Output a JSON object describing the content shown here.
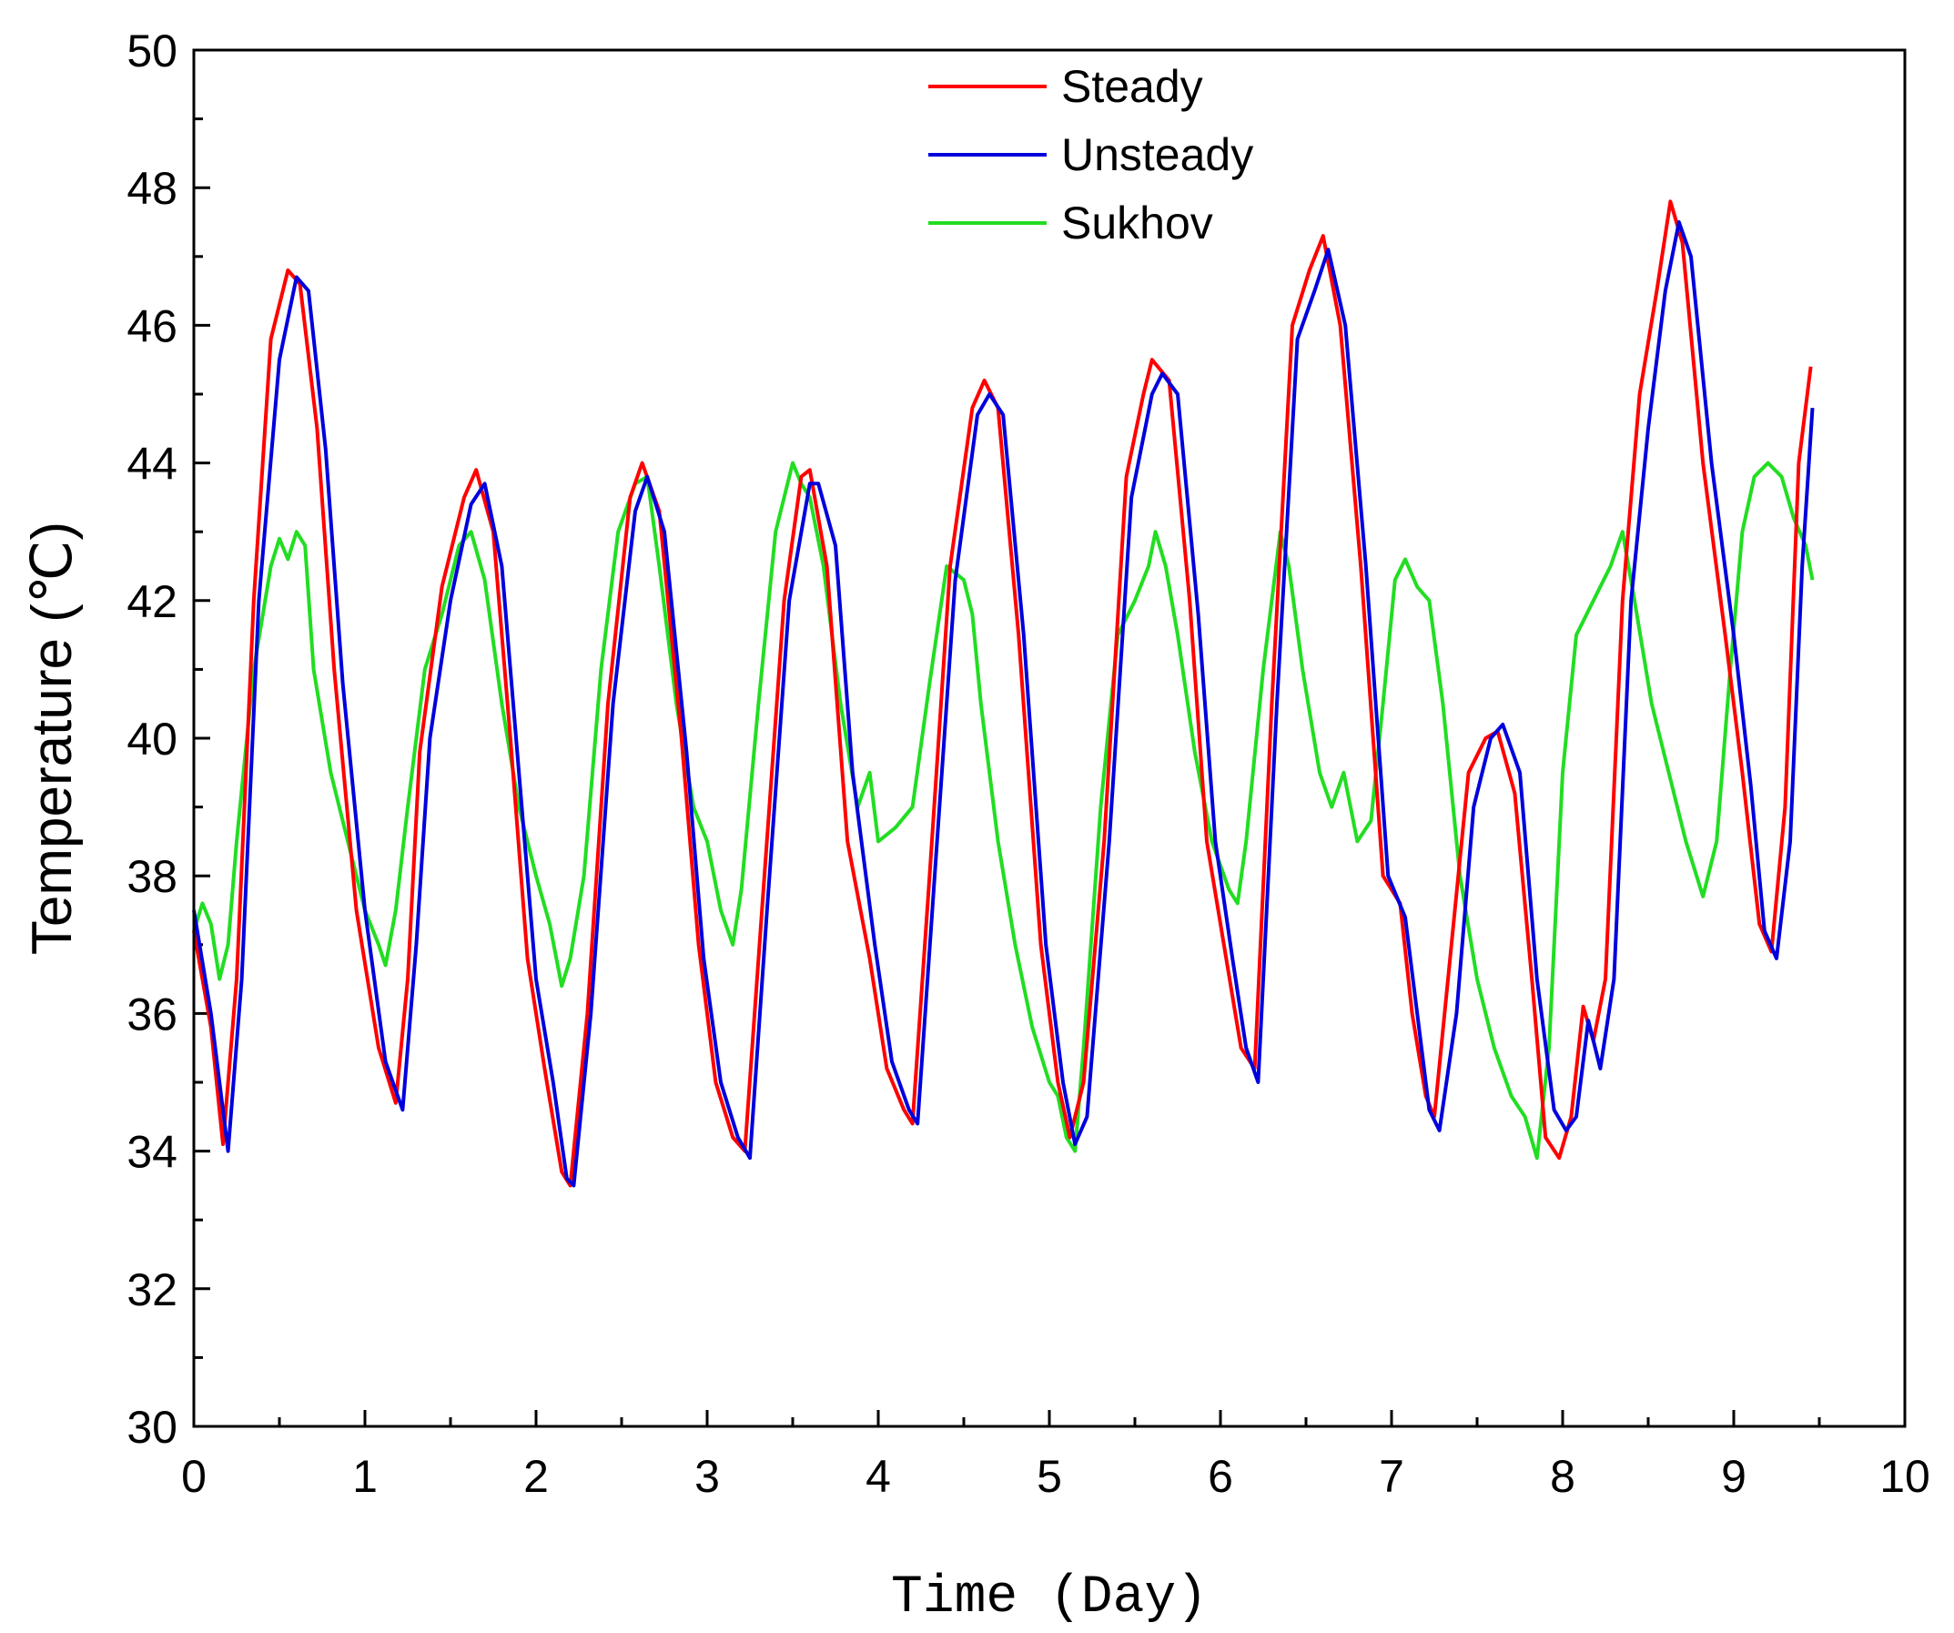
{
  "chart_data": {
    "type": "line",
    "xlabel": "Time (Day)",
    "ylabel": "Temperature (℃)",
    "xlim": [
      0,
      10
    ],
    "ylim": [
      30,
      50
    ],
    "xticks": [
      0,
      1,
      2,
      3,
      4,
      5,
      6,
      7,
      8,
      9,
      10
    ],
    "yticks": [
      30,
      32,
      34,
      36,
      38,
      40,
      42,
      44,
      46,
      48,
      50
    ],
    "legend_position": "top-center",
    "series": [
      {
        "name": "Steady",
        "color": "#ff0000",
        "points": [
          [
            0,
            37.2
          ],
          [
            0.1,
            35.8
          ],
          [
            0.17,
            34.1
          ],
          [
            0.25,
            36.5
          ],
          [
            0.35,
            42.0
          ],
          [
            0.45,
            45.8
          ],
          [
            0.55,
            46.8
          ],
          [
            0.62,
            46.6
          ],
          [
            0.72,
            44.5
          ],
          [
            0.82,
            41.0
          ],
          [
            0.95,
            37.5
          ],
          [
            1.08,
            35.5
          ],
          [
            1.18,
            34.7
          ],
          [
            1.25,
            36.5
          ],
          [
            1.32,
            39.8
          ],
          [
            1.45,
            42.2
          ],
          [
            1.58,
            43.5
          ],
          [
            1.65,
            43.9
          ],
          [
            1.75,
            43.0
          ],
          [
            1.85,
            40.0
          ],
          [
            1.95,
            36.8
          ],
          [
            2.05,
            35.2
          ],
          [
            2.15,
            33.7
          ],
          [
            2.2,
            33.5
          ],
          [
            2.3,
            36.0
          ],
          [
            2.42,
            40.5
          ],
          [
            2.55,
            43.5
          ],
          [
            2.62,
            44.0
          ],
          [
            2.72,
            43.3
          ],
          [
            2.85,
            40.0
          ],
          [
            2.95,
            37.0
          ],
          [
            3.05,
            35.0
          ],
          [
            3.15,
            34.2
          ],
          [
            3.22,
            34.0
          ],
          [
            3.32,
            37.5
          ],
          [
            3.45,
            42.0
          ],
          [
            3.55,
            43.8
          ],
          [
            3.6,
            43.9
          ],
          [
            3.7,
            42.5
          ],
          [
            3.82,
            38.5
          ],
          [
            3.95,
            36.8
          ],
          [
            4.05,
            35.2
          ],
          [
            4.15,
            34.6
          ],
          [
            4.2,
            34.4
          ],
          [
            4.3,
            38.0
          ],
          [
            4.42,
            42.5
          ],
          [
            4.55,
            44.8
          ],
          [
            4.62,
            45.2
          ],
          [
            4.7,
            44.8
          ],
          [
            4.82,
            41.5
          ],
          [
            4.95,
            37.0
          ],
          [
            5.05,
            35.0
          ],
          [
            5.12,
            34.2
          ],
          [
            5.2,
            35.0
          ],
          [
            5.32,
            38.5
          ],
          [
            5.45,
            43.8
          ],
          [
            5.55,
            45.0
          ],
          [
            5.6,
            45.5
          ],
          [
            5.7,
            45.2
          ],
          [
            5.82,
            42.0
          ],
          [
            5.92,
            38.5
          ],
          [
            6.02,
            37.0
          ],
          [
            6.12,
            35.5
          ],
          [
            6.2,
            35.2
          ],
          [
            6.3,
            40.5
          ],
          [
            6.42,
            46.0
          ],
          [
            6.52,
            46.8
          ],
          [
            6.6,
            47.3
          ],
          [
            6.7,
            46.0
          ],
          [
            6.82,
            42.5
          ],
          [
            6.95,
            38.0
          ],
          [
            7.05,
            37.6
          ],
          [
            7.12,
            36.0
          ],
          [
            7.2,
            34.8
          ],
          [
            7.25,
            34.5
          ],
          [
            7.35,
            37.0
          ],
          [
            7.45,
            39.5
          ],
          [
            7.55,
            40.0
          ],
          [
            7.62,
            40.1
          ],
          [
            7.72,
            39.2
          ],
          [
            7.82,
            36.5
          ],
          [
            7.9,
            34.2
          ],
          [
            7.98,
            33.9
          ],
          [
            8.05,
            34.5
          ],
          [
            8.12,
            36.1
          ],
          [
            8.18,
            35.6
          ],
          [
            8.25,
            36.5
          ],
          [
            8.35,
            42.0
          ],
          [
            8.45,
            45.0
          ],
          [
            8.55,
            46.5
          ],
          [
            8.63,
            47.8
          ],
          [
            8.7,
            47.2
          ],
          [
            8.82,
            44.0
          ],
          [
            8.95,
            41.5
          ],
          [
            9.05,
            39.5
          ],
          [
            9.15,
            37.3
          ],
          [
            9.22,
            36.9
          ],
          [
            9.3,
            39.0
          ],
          [
            9.38,
            44.0
          ],
          [
            9.45,
            45.4
          ]
        ]
      },
      {
        "name": "Unsteady",
        "color": "#0000dd",
        "points": [
          [
            0,
            37.5
          ],
          [
            0.1,
            36.0
          ],
          [
            0.2,
            34.0
          ],
          [
            0.28,
            36.5
          ],
          [
            0.38,
            42.0
          ],
          [
            0.5,
            45.5
          ],
          [
            0.6,
            46.7
          ],
          [
            0.67,
            46.5
          ],
          [
            0.77,
            44.2
          ],
          [
            0.87,
            40.8
          ],
          [
            1.0,
            37.5
          ],
          [
            1.12,
            35.3
          ],
          [
            1.22,
            34.6
          ],
          [
            1.3,
            37.0
          ],
          [
            1.38,
            40.0
          ],
          [
            1.5,
            42.0
          ],
          [
            1.62,
            43.4
          ],
          [
            1.7,
            43.7
          ],
          [
            1.8,
            42.5
          ],
          [
            1.9,
            39.5
          ],
          [
            2.0,
            36.5
          ],
          [
            2.1,
            35.0
          ],
          [
            2.18,
            33.6
          ],
          [
            2.22,
            33.5
          ],
          [
            2.32,
            36.0
          ],
          [
            2.45,
            40.5
          ],
          [
            2.58,
            43.3
          ],
          [
            2.65,
            43.8
          ],
          [
            2.75,
            43.0
          ],
          [
            2.88,
            39.8
          ],
          [
            2.98,
            36.8
          ],
          [
            3.08,
            35.0
          ],
          [
            3.18,
            34.2
          ],
          [
            3.25,
            33.9
          ],
          [
            3.35,
            37.5
          ],
          [
            3.48,
            42.0
          ],
          [
            3.6,
            43.7
          ],
          [
            3.65,
            43.7
          ],
          [
            3.75,
            42.8
          ],
          [
            3.85,
            39.5
          ],
          [
            3.98,
            37.0
          ],
          [
            4.08,
            35.3
          ],
          [
            4.18,
            34.6
          ],
          [
            4.23,
            34.4
          ],
          [
            4.33,
            38.0
          ],
          [
            4.45,
            42.3
          ],
          [
            4.58,
            44.7
          ],
          [
            4.65,
            45.0
          ],
          [
            4.73,
            44.7
          ],
          [
            4.85,
            41.5
          ],
          [
            4.98,
            37.0
          ],
          [
            5.08,
            35.0
          ],
          [
            5.15,
            34.1
          ],
          [
            5.22,
            34.5
          ],
          [
            5.35,
            38.5
          ],
          [
            5.48,
            43.5
          ],
          [
            5.6,
            45.0
          ],
          [
            5.66,
            45.3
          ],
          [
            5.75,
            45.0
          ],
          [
            5.87,
            41.8
          ],
          [
            5.97,
            38.5
          ],
          [
            6.07,
            36.8
          ],
          [
            6.15,
            35.5
          ],
          [
            6.22,
            35.0
          ],
          [
            6.33,
            40.5
          ],
          [
            6.45,
            45.8
          ],
          [
            6.55,
            46.5
          ],
          [
            6.63,
            47.1
          ],
          [
            6.73,
            46.0
          ],
          [
            6.85,
            42.5
          ],
          [
            6.98,
            38.0
          ],
          [
            7.08,
            37.4
          ],
          [
            7.15,
            36.0
          ],
          [
            7.22,
            34.6
          ],
          [
            7.28,
            34.3
          ],
          [
            7.38,
            36.0
          ],
          [
            7.48,
            39.0
          ],
          [
            7.58,
            40.0
          ],
          [
            7.65,
            40.2
          ],
          [
            7.75,
            39.5
          ],
          [
            7.85,
            36.5
          ],
          [
            7.95,
            34.6
          ],
          [
            8.02,
            34.3
          ],
          [
            8.08,
            34.5
          ],
          [
            8.15,
            35.9
          ],
          [
            8.22,
            35.2
          ],
          [
            8.3,
            36.5
          ],
          [
            8.4,
            42.0
          ],
          [
            8.5,
            44.5
          ],
          [
            8.6,
            46.5
          ],
          [
            8.68,
            47.5
          ],
          [
            8.75,
            47.0
          ],
          [
            8.87,
            44.0
          ],
          [
            9.0,
            41.5
          ],
          [
            9.1,
            39.3
          ],
          [
            9.18,
            37.2
          ],
          [
            9.25,
            36.8
          ],
          [
            9.33,
            38.5
          ],
          [
            9.4,
            42.5
          ],
          [
            9.46,
            44.8
          ]
        ]
      },
      {
        "name": "Sukhov",
        "color": "#22dd22",
        "points": [
          [
            0,
            37.2
          ],
          [
            0.05,
            37.6
          ],
          [
            0.1,
            37.3
          ],
          [
            0.15,
            36.5
          ],
          [
            0.2,
            37.0
          ],
          [
            0.25,
            38.5
          ],
          [
            0.35,
            41.0
          ],
          [
            0.45,
            42.5
          ],
          [
            0.5,
            42.9
          ],
          [
            0.55,
            42.6
          ],
          [
            0.6,
            43.0
          ],
          [
            0.65,
            42.8
          ],
          [
            0.7,
            41.0
          ],
          [
            0.8,
            39.5
          ],
          [
            0.9,
            38.5
          ],
          [
            1.0,
            37.5
          ],
          [
            1.08,
            37.0
          ],
          [
            1.12,
            36.7
          ],
          [
            1.18,
            37.5
          ],
          [
            1.25,
            39.0
          ],
          [
            1.35,
            41.0
          ],
          [
            1.45,
            41.8
          ],
          [
            1.55,
            42.8
          ],
          [
            1.62,
            43.0
          ],
          [
            1.7,
            42.3
          ],
          [
            1.8,
            40.5
          ],
          [
            1.9,
            39.0
          ],
          [
            2.0,
            38.0
          ],
          [
            2.08,
            37.3
          ],
          [
            2.15,
            36.4
          ],
          [
            2.2,
            36.8
          ],
          [
            2.28,
            38.0
          ],
          [
            2.38,
            41.0
          ],
          [
            2.48,
            43.0
          ],
          [
            2.58,
            43.7
          ],
          [
            2.65,
            43.8
          ],
          [
            2.72,
            42.5
          ],
          [
            2.82,
            40.5
          ],
          [
            2.92,
            39.0
          ],
          [
            3.0,
            38.5
          ],
          [
            3.08,
            37.5
          ],
          [
            3.15,
            37.0
          ],
          [
            3.2,
            37.8
          ],
          [
            3.3,
            40.5
          ],
          [
            3.4,
            43.0
          ],
          [
            3.5,
            44.0
          ],
          [
            3.55,
            43.7
          ],
          [
            3.6,
            43.5
          ],
          [
            3.68,
            42.5
          ],
          [
            3.78,
            40.5
          ],
          [
            3.88,
            39.0
          ],
          [
            3.95,
            39.5
          ],
          [
            4.0,
            38.5
          ],
          [
            4.1,
            38.7
          ],
          [
            4.2,
            39.0
          ],
          [
            4.3,
            40.8
          ],
          [
            4.4,
            42.5
          ],
          [
            4.5,
            42.3
          ],
          [
            4.55,
            41.8
          ],
          [
            4.6,
            40.5
          ],
          [
            4.7,
            38.5
          ],
          [
            4.8,
            37.0
          ],
          [
            4.9,
            35.8
          ],
          [
            5.0,
            35.0
          ],
          [
            5.05,
            34.8
          ],
          [
            5.1,
            34.2
          ],
          [
            5.15,
            34.0
          ],
          [
            5.2,
            35.5
          ],
          [
            5.3,
            39.0
          ],
          [
            5.4,
            41.5
          ],
          [
            5.5,
            42.0
          ],
          [
            5.58,
            42.5
          ],
          [
            5.62,
            43.0
          ],
          [
            5.68,
            42.5
          ],
          [
            5.75,
            41.5
          ],
          [
            5.85,
            39.8
          ],
          [
            5.95,
            38.5
          ],
          [
            6.05,
            37.8
          ],
          [
            6.1,
            37.6
          ],
          [
            6.15,
            38.5
          ],
          [
            6.25,
            41.0
          ],
          [
            6.35,
            43.0
          ],
          [
            6.4,
            42.5
          ],
          [
            6.48,
            41.0
          ],
          [
            6.58,
            39.5
          ],
          [
            6.65,
            39.0
          ],
          [
            6.72,
            39.5
          ],
          [
            6.8,
            38.5
          ],
          [
            6.88,
            38.8
          ],
          [
            6.95,
            40.5
          ],
          [
            7.02,
            42.3
          ],
          [
            7.08,
            42.6
          ],
          [
            7.15,
            42.2
          ],
          [
            7.22,
            42.0
          ],
          [
            7.3,
            40.5
          ],
          [
            7.4,
            38.0
          ],
          [
            7.5,
            36.5
          ],
          [
            7.6,
            35.5
          ],
          [
            7.7,
            34.8
          ],
          [
            7.78,
            34.5
          ],
          [
            7.85,
            33.9
          ],
          [
            7.92,
            35.5
          ],
          [
            8.0,
            39.5
          ],
          [
            8.08,
            41.5
          ],
          [
            8.18,
            42.0
          ],
          [
            8.28,
            42.5
          ],
          [
            8.35,
            43.0
          ],
          [
            8.42,
            42.0
          ],
          [
            8.52,
            40.5
          ],
          [
            8.62,
            39.5
          ],
          [
            8.72,
            38.5
          ],
          [
            8.82,
            37.7
          ],
          [
            8.9,
            38.5
          ],
          [
            8.98,
            41.0
          ],
          [
            9.05,
            43.0
          ],
          [
            9.12,
            43.8
          ],
          [
            9.2,
            44.0
          ],
          [
            9.28,
            43.8
          ],
          [
            9.35,
            43.2
          ],
          [
            9.42,
            42.8
          ],
          [
            9.46,
            42.3
          ]
        ]
      }
    ]
  }
}
